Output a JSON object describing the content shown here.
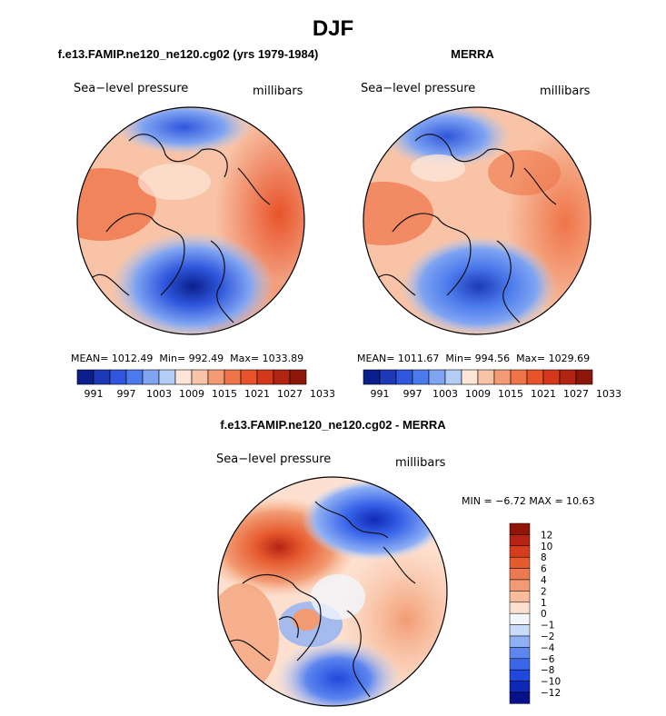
{
  "figure": {
    "title": "DJF"
  },
  "colors": {
    "seq": [
      "#0a1f8c",
      "#1c39b7",
      "#2f56dc",
      "#4b7aec",
      "#7fa4f2",
      "#b4cdf7",
      "#fde6d8",
      "#f8c3a6",
      "#f49a75",
      "#ef7448",
      "#e8532a",
      "#d5371a",
      "#b22412",
      "#8c1608"
    ],
    "diff": [
      "#08108a",
      "#0e28b6",
      "#1f48de",
      "#3a66ea",
      "#5d86ef",
      "#8fb0f4",
      "#c9dcfa",
      "#f3f6fd",
      "#fde0cf",
      "#f8bc9b",
      "#f29b72",
      "#ec7a4e",
      "#e65a2f",
      "#d73c1c",
      "#b62312",
      "#8f1508"
    ],
    "land_line": "#111111"
  },
  "chart_data": [
    {
      "type": "heatmap",
      "projection": "polar-stereographic",
      "title": "f.e13.FAMIP.ne120_ne120.cg02 (yrs 1979-1984)",
      "left_label": "Sea−level pressure",
      "right_label": "millibars",
      "mean_label": "MEAN=",
      "mean": "1012.49",
      "min_label": "Min=",
      "min": "992.49",
      "max_label": "Max=",
      "max": "1033.89",
      "colorbar_ticks": [
        "991",
        "997",
        "1003",
        "1009",
        "1015",
        "1021",
        "1027",
        "1033"
      ]
    },
    {
      "type": "heatmap",
      "projection": "polar-stereographic",
      "title": "MERRA",
      "left_label": "Sea−level pressure",
      "right_label": "millibars",
      "mean_label": "MEAN=",
      "mean": "1011.67",
      "min_label": "Min=",
      "min": "994.56",
      "max_label": "Max=",
      "max": "1029.69",
      "colorbar_ticks": [
        "991",
        "997",
        "1003",
        "1009",
        "1015",
        "1021",
        "1027",
        "1033"
      ]
    },
    {
      "type": "heatmap",
      "projection": "polar-stereographic",
      "title": "f.e13.FAMIP.ne120_ne120.cg02 - MERRA",
      "left_label": "Sea−level pressure",
      "right_label": "millibars",
      "min_label": "MIN =",
      "min": "−6.72",
      "max_label": "MAX =",
      "max": "10.63",
      "colorbar_ticks": [
        "12",
        "10",
        "8",
        "6",
        "4",
        "2",
        "1",
        "0",
        "−1",
        "−2",
        "−4",
        "−6",
        "−8",
        "−10",
        "−12"
      ]
    }
  ]
}
